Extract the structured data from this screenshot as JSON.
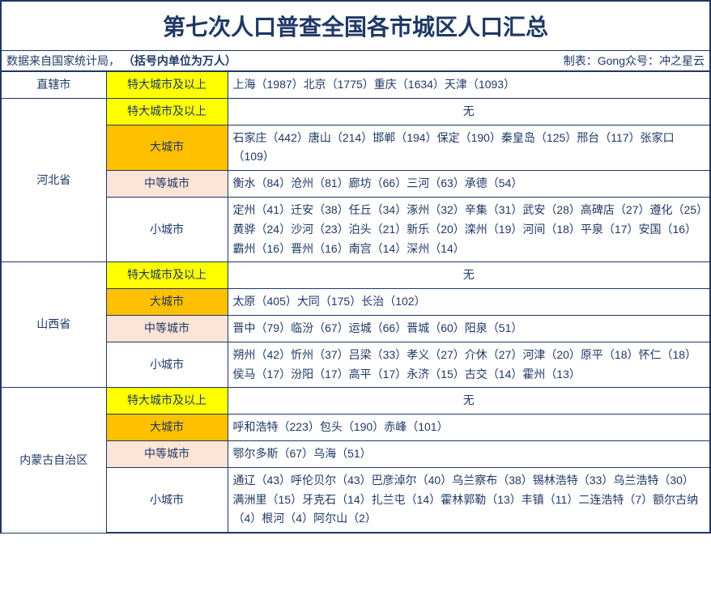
{
  "title": "第七次人口普查全国各市城区人口汇总",
  "subtitle_left_plain": "数据来自国家统计局，",
  "subtitle_left_bold": "（括号内单位为万人）",
  "subtitle_right": "制表：Gong众号：冲之星云",
  "colors": {
    "text": "#1f3864",
    "border": "#1f3864",
    "yellow": "#ffff00",
    "orange": "#ffc000",
    "peach": "#fce4d6",
    "white": "#ffffff"
  },
  "rows": [
    {
      "province": "直辖市",
      "tiers": [
        {
          "tier": "特大城市及以上",
          "bg": "yellow",
          "cities": "上海（1987）北京（1775）重庆（1634）天津（1093）",
          "center": false
        }
      ]
    },
    {
      "province": "河北省",
      "tiers": [
        {
          "tier": "特大城市及以上",
          "bg": "yellow",
          "cities": "无",
          "center": true
        },
        {
          "tier": "大城市",
          "bg": "orange",
          "cities": "石家庄（442）唐山（214）邯郸（194）保定（190）秦皇岛（125）邢台（117）张家口（109）",
          "center": false
        },
        {
          "tier": "中等城市",
          "bg": "peach",
          "cities": "衡水（84）沧州（81）廊坊（66）三河（63）承德（54）",
          "center": false
        },
        {
          "tier": "小城市",
          "bg": "white",
          "cities": "定州（41）迁安（38）任丘（34）涿州（32）辛集（31）武安（28）高碑店（27）遵化（25）黄骅（24）沙河（23）泊头（21）新乐（20）滦州（19）河间（18）平泉（17）安国（16）霸州（16）晋州（16）南宫（14）深州（14）",
          "center": false
        }
      ]
    },
    {
      "province": "山西省",
      "tiers": [
        {
          "tier": "特大城市及以上",
          "bg": "yellow",
          "cities": "无",
          "center": true
        },
        {
          "tier": "大城市",
          "bg": "orange",
          "cities": "太原（405）大同（175）长治（102）",
          "center": false
        },
        {
          "tier": "中等城市",
          "bg": "peach",
          "cities": "晋中（79）临汾（67）运城（66）晋城（60）阳泉（51）",
          "center": false
        },
        {
          "tier": "小城市",
          "bg": "white",
          "cities": "朔州（42）忻州（37）吕梁（33）孝义（27）介休（27）河津（20）原平（18）怀仁（18）侯马（17）汾阳（17）高平（17）永济（15）古交（14）霍州（13）",
          "center": false
        }
      ]
    },
    {
      "province": "内蒙古自治区",
      "tiers": [
        {
          "tier": "特大城市及以上",
          "bg": "yellow",
          "cities": "无",
          "center": true
        },
        {
          "tier": "大城市",
          "bg": "orange",
          "cities": "呼和浩特（223）包头（190）赤峰（101）",
          "center": false
        },
        {
          "tier": "中等城市",
          "bg": "peach",
          "cities": "鄂尔多斯（67）乌海（51）",
          "center": false
        },
        {
          "tier": "小城市",
          "bg": "white",
          "cities": "通辽（43）呼伦贝尔（43）巴彦淖尔（40）乌兰察布（38）锡林浩特（33）乌兰浩特（30）满洲里（15）牙克石（14）扎兰屯（14）霍林郭勒（13）丰镇（11）二连浩特（7）额尔古纳（4）根河（4）阿尔山（2）",
          "center": false
        }
      ]
    }
  ]
}
